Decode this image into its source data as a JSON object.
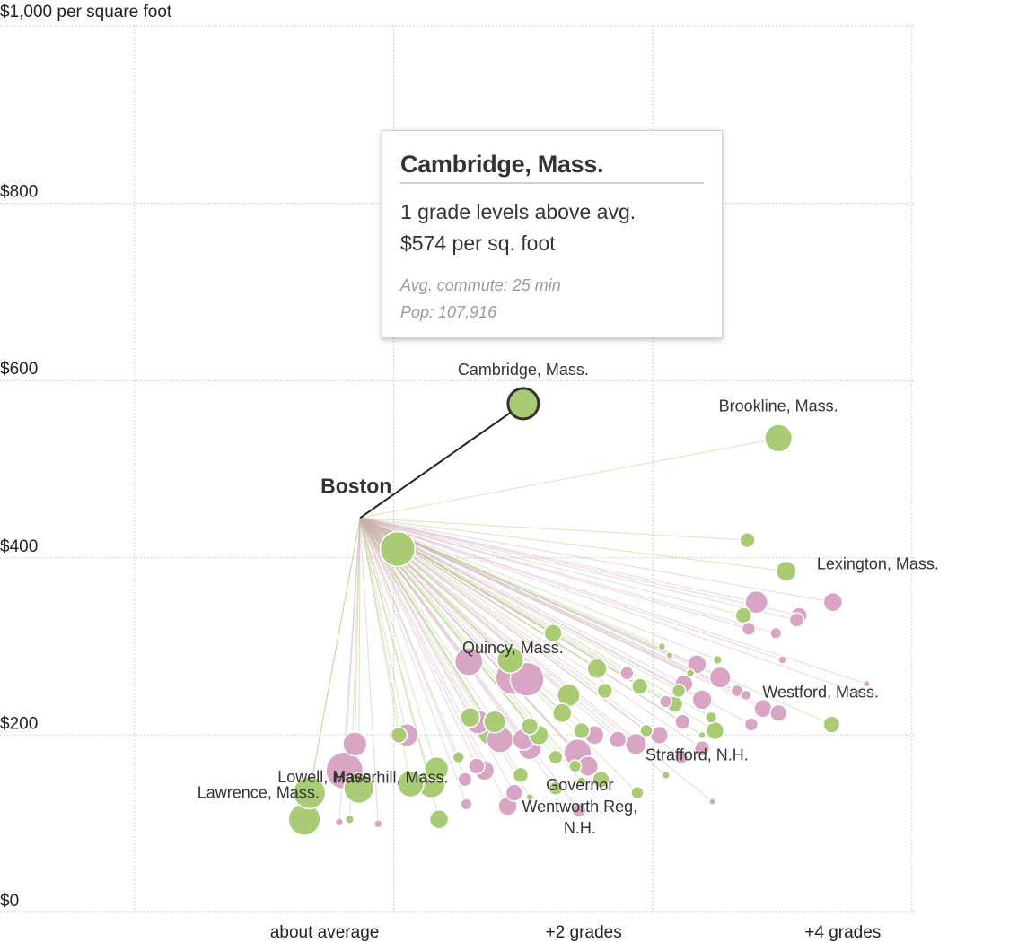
{
  "chart_data": {
    "type": "scatter",
    "title": "",
    "ylabel": "$1,000 per square foot",
    "ylim": [
      0,
      1000
    ],
    "xlim": [
      -2,
      4
    ],
    "y_ticks": [
      {
        "value": 0,
        "label": "$0"
      },
      {
        "value": 200,
        "label": "$200"
      },
      {
        "value": 400,
        "label": "$400"
      },
      {
        "value": 600,
        "label": "$600"
      },
      {
        "value": 800,
        "label": "$800"
      }
    ],
    "x_ticks": [
      {
        "value": 0,
        "label": "about average"
      },
      {
        "value": 2,
        "label": "+2 grades"
      },
      {
        "value": 4,
        "label": "+4 grades"
      }
    ],
    "grid": true,
    "hub": {
      "name": "Boston",
      "x": -0.26,
      "y": 445
    },
    "colors": {
      "green": "#a9cb76",
      "pink": "#d9a5c4",
      "highlight_stroke": "#333333",
      "hub_line": "#222222"
    },
    "highlight": {
      "name": "Cambridge, Mass.",
      "x": 1,
      "y": 574,
      "size": 107916,
      "color": "green"
    },
    "labeled_points": [
      {
        "name": "Brookline, Mass.",
        "x": 2.97,
        "y": 535,
        "size": 59000,
        "color": "green"
      },
      {
        "name": "Lexington, Mass.",
        "x": 3.03,
        "y": 385,
        "size": 32000,
        "color": "green"
      },
      {
        "name": "Quincy, Mass.",
        "x": 0.92,
        "y": 265,
        "size": 92000,
        "color": "pink"
      },
      {
        "name": "Westford, Mass.",
        "x": 3.38,
        "y": 212,
        "size": 22000,
        "color": "green"
      },
      {
        "name": "Strafford, N.H.",
        "x": 2.38,
        "y": 200,
        "size": 4000,
        "color": "green"
      },
      {
        "name": "Lowell, Mass.",
        "x": -0.38,
        "y": 160,
        "size": 108000,
        "color": "pink"
      },
      {
        "name": "Haverhill, Mass.",
        "x": 0.29,
        "y": 145,
        "size": 61000,
        "color": "green"
      },
      {
        "name": "Lawrence, Mass.",
        "x": -0.65,
        "y": 135,
        "size": 80000,
        "color": "green"
      },
      {
        "name": "Governor Wentworth Reg, N.H.",
        "x": 1.45,
        "y": 148,
        "size": 6000,
        "color": "green"
      }
    ],
    "series": [
      {
        "name": "",
        "color": "green",
        "points": [
          {
            "x": 0.03,
            "y": 410,
            "size": 95000
          },
          {
            "x": 2.73,
            "y": 420,
            "size": 18000
          },
          {
            "x": 2.7,
            "y": 335,
            "size": 20000
          },
          {
            "x": 1.23,
            "y": 315,
            "size": 25000
          },
          {
            "x": 2.07,
            "y": 300,
            "size": 4000
          },
          {
            "x": 2.13,
            "y": 290,
            "size": 3500
          },
          {
            "x": 2.5,
            "y": 285,
            "size": 6000
          },
          {
            "x": 0.9,
            "y": 285,
            "size": 55000
          },
          {
            "x": 1.57,
            "y": 275,
            "size": 30000
          },
          {
            "x": 1.9,
            "y": 255,
            "size": 20000
          },
          {
            "x": 1.63,
            "y": 250,
            "size": 18000
          },
          {
            "x": 1.35,
            "y": 245,
            "size": 40000
          },
          {
            "x": 2.17,
            "y": 235,
            "size": 20000
          },
          {
            "x": 1.3,
            "y": 225,
            "size": 28000
          },
          {
            "x": 0.59,
            "y": 220,
            "size": 30000
          },
          {
            "x": 0.78,
            "y": 215,
            "size": 38000
          },
          {
            "x": 1.05,
            "y": 210,
            "size": 22000
          },
          {
            "x": 1.45,
            "y": 205,
            "size": 20000
          },
          {
            "x": 0.76,
            "y": 205,
            "size": 70000
          },
          {
            "x": 1.12,
            "y": 200,
            "size": 30000
          },
          {
            "x": 2.48,
            "y": 205,
            "size": 25000
          },
          {
            "x": 2.45,
            "y": 220,
            "size": 10000
          },
          {
            "x": 0.04,
            "y": 200,
            "size": 20000
          },
          {
            "x": 1.95,
            "y": 205,
            "size": 12000
          },
          {
            "x": 1.25,
            "y": 175,
            "size": 15000
          },
          {
            "x": 1.4,
            "y": 165,
            "size": 12000
          },
          {
            "x": 0.33,
            "y": 162,
            "size": 45000
          },
          {
            "x": 0.5,
            "y": 175,
            "size": 10000
          },
          {
            "x": 1.6,
            "y": 150,
            "size": 22000
          },
          {
            "x": 0.98,
            "y": 155,
            "size": 18000
          },
          {
            "x": 1.25,
            "y": 140,
            "size": 15000
          },
          {
            "x": 1.88,
            "y": 135,
            "size": 12000
          },
          {
            "x": 2.1,
            "y": 155,
            "size": 5000
          },
          {
            "x": 0.13,
            "y": 145,
            "size": 55000
          },
          {
            "x": -0.27,
            "y": 140,
            "size": 70000
          },
          {
            "x": -0.34,
            "y": 105,
            "size": 6000
          },
          {
            "x": 0.35,
            "y": 105,
            "size": 28000
          },
          {
            "x": -0.69,
            "y": 105,
            "size": 80000
          },
          {
            "x": 1.05,
            "y": 130,
            "size": 4000
          },
          {
            "x": 2.29,
            "y": 270,
            "size": 5000
          },
          {
            "x": 2.2,
            "y": 250,
            "size": 14000
          }
        ]
      },
      {
        "name": "",
        "color": "pink",
        "points": [
          {
            "x": 2.8,
            "y": 350,
            "size": 40000
          },
          {
            "x": 3.39,
            "y": 350,
            "size": 28000
          },
          {
            "x": 3.13,
            "y": 335,
            "size": 20000
          },
          {
            "x": 3.11,
            "y": 330,
            "size": 16000
          },
          {
            "x": 2.74,
            "y": 320,
            "size": 14000
          },
          {
            "x": 2.95,
            "y": 315,
            "size": 10000
          },
          {
            "x": 1.03,
            "y": 263,
            "size": 90000
          },
          {
            "x": 0.58,
            "y": 283,
            "size": 62000
          },
          {
            "x": 2.52,
            "y": 265,
            "size": 35000
          },
          {
            "x": 2.34,
            "y": 280,
            "size": 28000
          },
          {
            "x": 1.8,
            "y": 270,
            "size": 14000
          },
          {
            "x": 2.24,
            "y": 258,
            "size": 25000
          },
          {
            "x": 2.65,
            "y": 250,
            "size": 11000
          },
          {
            "x": 2.72,
            "y": 245,
            "size": 8000
          },
          {
            "x": 2.85,
            "y": 230,
            "size": 25000
          },
          {
            "x": 2.38,
            "y": 240,
            "size": 30000
          },
          {
            "x": 2.1,
            "y": 238,
            "size": 12000
          },
          {
            "x": 2.97,
            "y": 225,
            "size": 22000
          },
          {
            "x": 2.76,
            "y": 212,
            "size": 14000
          },
          {
            "x": 2.23,
            "y": 215,
            "size": 18000
          },
          {
            "x": 0.65,
            "y": 215,
            "size": 45000
          },
          {
            "x": 1.05,
            "y": 185,
            "size": 40000
          },
          {
            "x": 0.82,
            "y": 195,
            "size": 55000
          },
          {
            "x": 1.0,
            "y": 195,
            "size": 35000
          },
          {
            "x": 1.42,
            "y": 180,
            "size": 60000
          },
          {
            "x": 1.73,
            "y": 195,
            "size": 22000
          },
          {
            "x": 1.55,
            "y": 200,
            "size": 28000
          },
          {
            "x": 1.87,
            "y": 190,
            "size": 35000
          },
          {
            "x": 2.05,
            "y": 200,
            "size": 25000
          },
          {
            "x": 2.38,
            "y": 185,
            "size": 18000
          },
          {
            "x": 2.22,
            "y": 175,
            "size": 14000
          },
          {
            "x": 1.5,
            "y": 165,
            "size": 32000
          },
          {
            "x": 0.1,
            "y": 200,
            "size": 40000
          },
          {
            "x": -0.3,
            "y": 190,
            "size": 45000
          },
          {
            "x": 0.64,
            "y": 165,
            "size": 20000
          },
          {
            "x": 0.55,
            "y": 150,
            "size": 15000
          },
          {
            "x": 0.93,
            "y": 135,
            "size": 22000
          },
          {
            "x": 0.88,
            "y": 120,
            "size": 28000
          },
          {
            "x": 0.56,
            "y": 122,
            "size": 10000
          },
          {
            "x": 1.43,
            "y": 115,
            "size": 15000
          },
          {
            "x": -0.12,
            "y": 100,
            "size": 5000
          },
          {
            "x": -0.42,
            "y": 102,
            "size": 5000
          },
          {
            "x": 2.46,
            "y": 125,
            "size": 3500
          },
          {
            "x": 3.65,
            "y": 258,
            "size": 3500
          },
          {
            "x": 3.58,
            "y": 248,
            "size": 4000
          },
          {
            "x": 3.0,
            "y": 285,
            "size": 5000
          },
          {
            "x": 0.7,
            "y": 160,
            "size": 30000
          }
        ]
      }
    ]
  },
  "tooltip": {
    "title": "Cambridge, Mass.",
    "line1": "1 grade levels above avg.",
    "line2": "$574 per sq. foot",
    "commute": "Avg. commute: 25 min",
    "population": "Pop: 107,916"
  }
}
